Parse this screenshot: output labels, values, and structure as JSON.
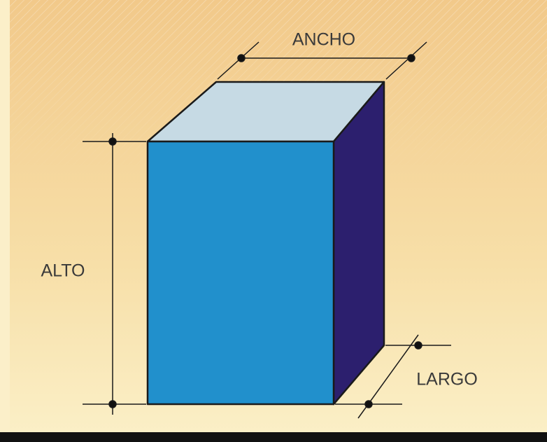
{
  "labels": {
    "width": "ANCHO",
    "height": "ALTO",
    "depth": "LARGO"
  }
}
